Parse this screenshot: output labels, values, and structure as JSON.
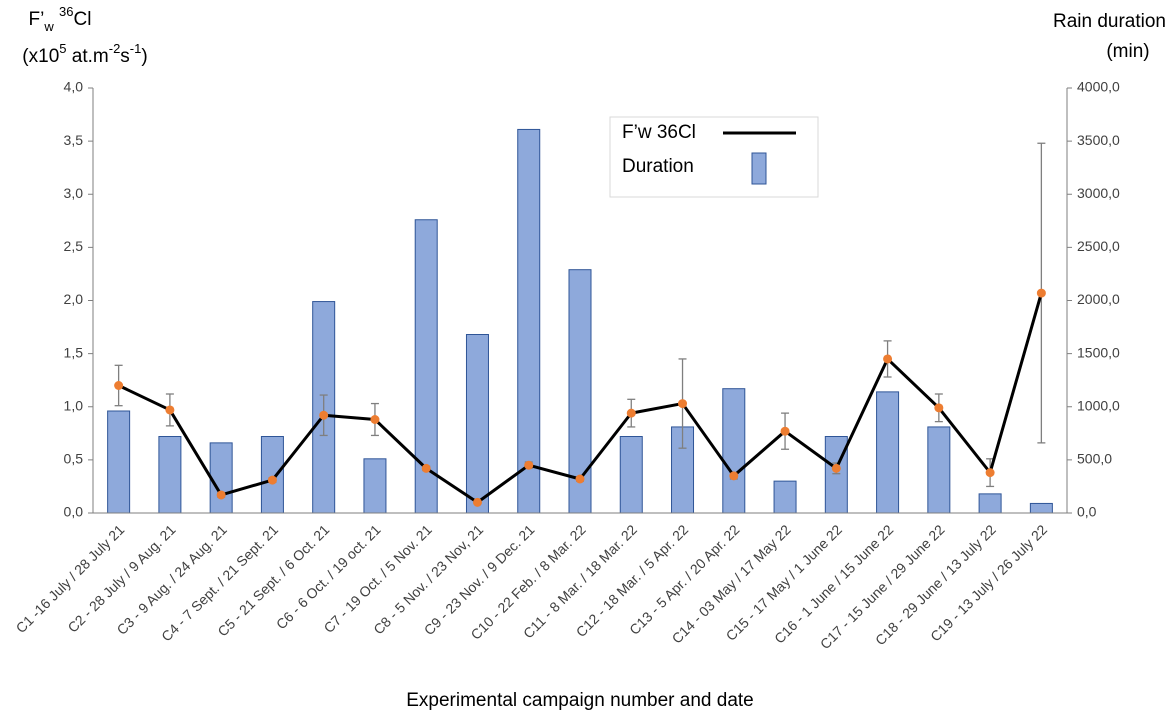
{
  "chart_data": {
    "type": "combo",
    "x_label": "Experimental campaign number and date",
    "y_label": [
      [
        "F’",
        "w",
        " ",
        "36",
        "Cl"
      ],
      [
        "(x10",
        "5",
        " at.m",
        "-2",
        "s",
        "-1",
        ")"
      ]
    ],
    "y2_label": [
      "Rain duration",
      "(min)"
    ],
    "categories": [
      "C1 -16 July / 28 July 21",
      "C2 - 28 July / 9 Aug. 21",
      "C3 - 9 Aug. / 24 Aug. 21",
      "C4 - 7 Sept. / 21 Sept. 21",
      "C5 - 21 Sept. / 6 Oct. 21",
      "C6 - 6 Oct. / 19 oct. 21",
      "C7 - 19 Oct. / 5 Nov. 21",
      "C8 - 5 Nov. / 23 Nov, 21",
      "C9 - 23 Nov. / 9 Dec. 21",
      "C10 - 22 Feb. / 8 Mar. 22",
      "C11 - 8 Mar. / 18 Mar. 22",
      "C12 - 18 Mar. / 5 Apr. 22",
      "C13 - 5 Apr. / 20 Apr. 22",
      "C14 - 03 May / 17 May 22",
      "C15 - 17 May / 1 June 22",
      "C16 - 1 June / 15 June 22",
      "C17 - 15 June / 29 June 22",
      "C18 - 29 June / 13 July 22",
      "C19 - 13 July / 26 July 22"
    ],
    "series": [
      {
        "name": "F’w 36Cl",
        "type": "line",
        "color": "#000000",
        "marker_color": "#ED7D31",
        "values": [
          1.2,
          0.97,
          0.17,
          0.31,
          0.92,
          0.88,
          0.42,
          0.1,
          0.45,
          0.32,
          0.94,
          1.03,
          0.35,
          0.77,
          0.42,
          1.45,
          0.99,
          0.38,
          2.07
        ],
        "errors": [
          0.19,
          0.15,
          0.02,
          0.02,
          0.19,
          0.15,
          0.02,
          0.01,
          0.03,
          0.02,
          0.13,
          0.42,
          0.03,
          0.17,
          0.05,
          0.17,
          0.13,
          0.13,
          1.41
        ]
      },
      {
        "name": "Duration",
        "type": "bar",
        "axis": "y2",
        "color": "#8EA9DB",
        "values": [
          960,
          720,
          660,
          720,
          1990,
          510,
          2760,
          1680,
          3610,
          2290,
          720,
          810,
          1170,
          300,
          720,
          1140,
          810,
          180,
          90
        ]
      }
    ],
    "ylim": [
      0,
      4
    ],
    "yticks": [
      {
        "value": 0,
        "label": "0,0"
      },
      {
        "value": 0.5,
        "label": "0,5"
      },
      {
        "value": 1,
        "label": "1,0"
      },
      {
        "value": 1.5,
        "label": "1,5"
      },
      {
        "value": 2,
        "label": "2,0"
      },
      {
        "value": 2.5,
        "label": "2,5"
      },
      {
        "value": 3,
        "label": "3,0"
      },
      {
        "value": 3.5,
        "label": "3,5"
      },
      {
        "value": 4,
        "label": "4,0"
      }
    ],
    "y2lim": [
      0,
      4000
    ],
    "y2ticks": [
      {
        "value": 0,
        "label": "0,0"
      },
      {
        "value": 500,
        "label": "500,0"
      },
      {
        "value": 1000,
        "label": "1000,0"
      },
      {
        "value": 1500,
        "label": "1500,0"
      },
      {
        "value": 2000,
        "label": "2000,0"
      },
      {
        "value": 2500,
        "label": "2500,0"
      },
      {
        "value": 3000,
        "label": "3000,0"
      },
      {
        "value": 3500,
        "label": "3500,0"
      },
      {
        "value": 4000,
        "label": "4000,0"
      }
    ]
  }
}
